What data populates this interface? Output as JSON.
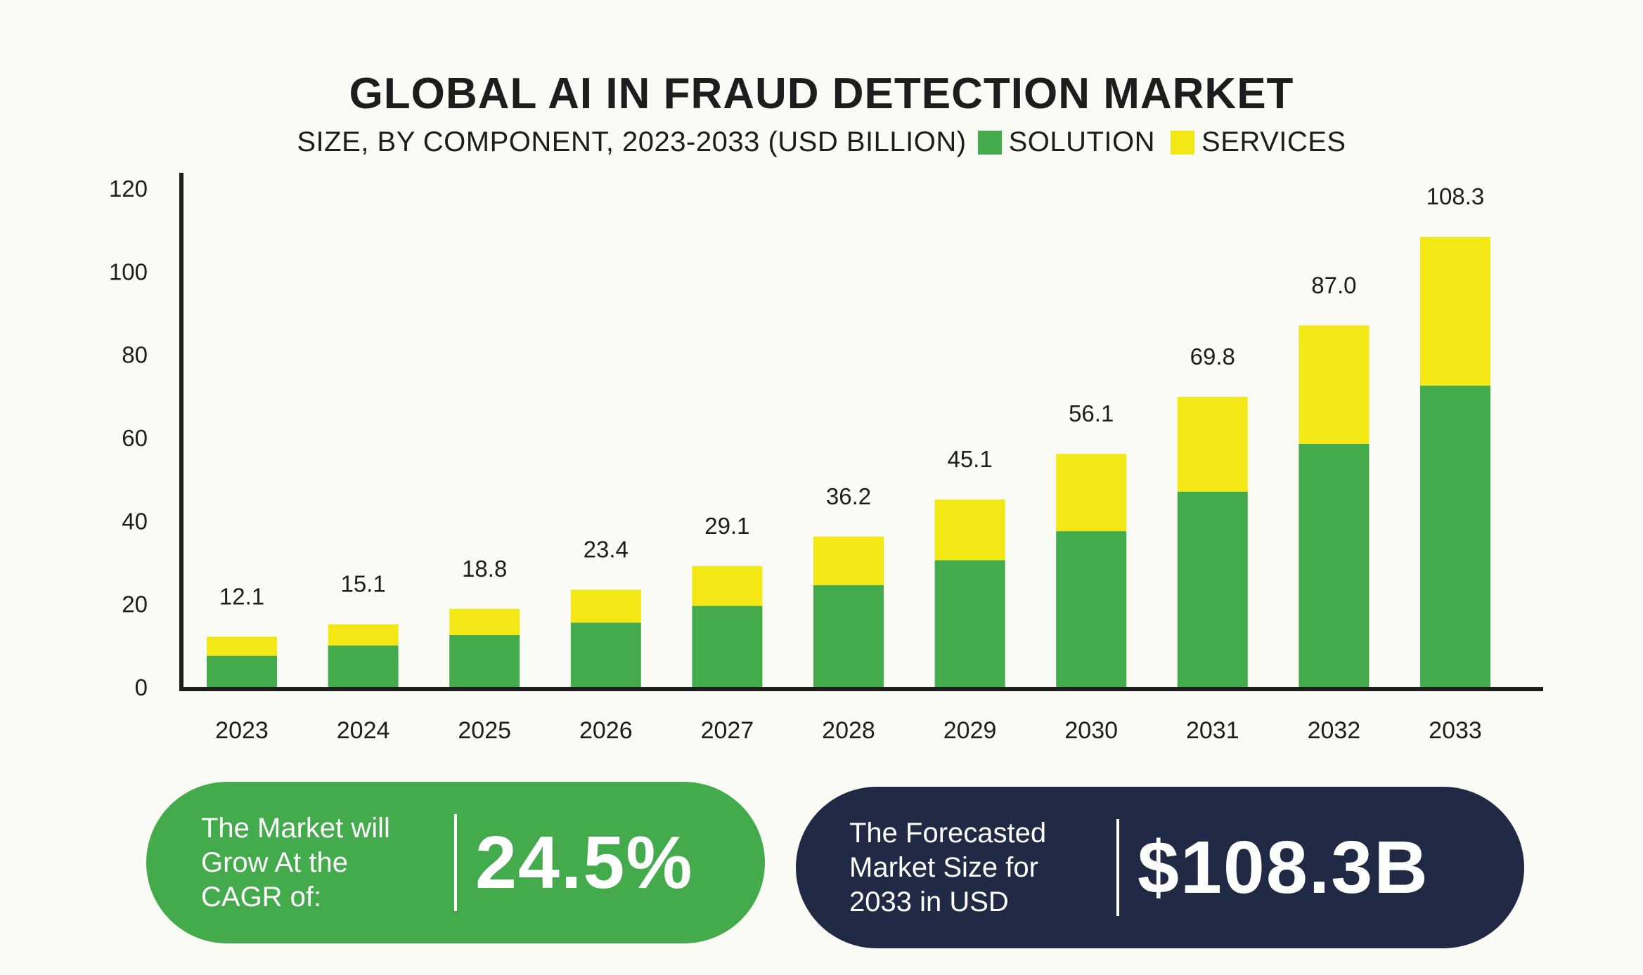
{
  "chart_data": {
    "type": "bar",
    "stacked": true,
    "title": "GLOBAL AI IN FRAUD DETECTION MARKET",
    "subtitle": "SIZE, BY COMPONENT, 2023-2033 (USD BILLION)",
    "categories": [
      "2023",
      "2024",
      "2025",
      "2026",
      "2027",
      "2028",
      "2029",
      "2030",
      "2031",
      "2032",
      "2033"
    ],
    "series": [
      {
        "name": "SOLUTION",
        "color": "#44ab4d",
        "values": [
          7.5,
          10.0,
          12.5,
          15.5,
          19.5,
          24.5,
          30.5,
          37.5,
          47.0,
          58.5,
          72.5
        ]
      },
      {
        "name": "SERVICES",
        "color": "#f3e816",
        "values": [
          4.6,
          5.1,
          6.3,
          7.9,
          9.6,
          11.7,
          14.6,
          18.6,
          22.8,
          28.5,
          35.8
        ]
      }
    ],
    "totals": [
      "12.1",
      "15.1",
      "18.8",
      "23.4",
      "29.1",
      "36.2",
      "45.1",
      "56.1",
      "69.8",
      "87.0",
      "108.3"
    ],
    "yticks": [
      "0",
      "20",
      "40",
      "60",
      "80",
      "100",
      "120"
    ],
    "ylim": [
      0,
      120
    ],
    "legend_position": "top, inline with subtitle",
    "grid": false
  },
  "summary": {
    "cagr_text": [
      "The Market will",
      "Grow At the",
      "CAGR of:"
    ],
    "cagr_value": "24.5%",
    "forecast_text": [
      "The Forecasted",
      "Market Size for",
      "2033 in USD"
    ],
    "forecast_value": "$108.3B",
    "cagr_color": "#44ab4d",
    "forecast_color": "#212a45"
  }
}
